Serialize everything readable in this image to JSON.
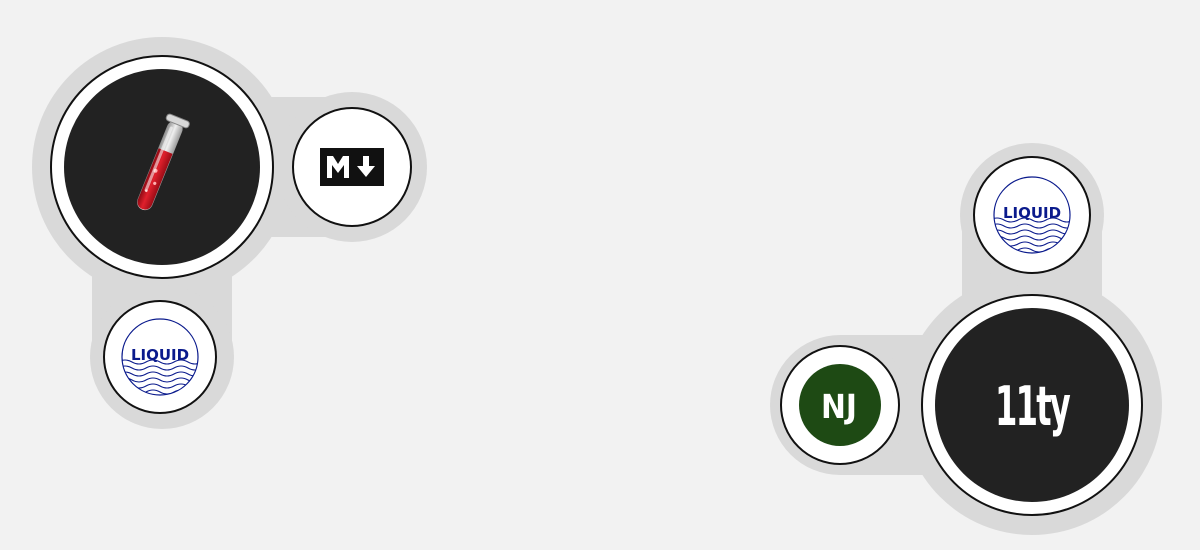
{
  "left_cluster": {
    "main": {
      "icon": "test-tube-icon"
    },
    "satellites": [
      {
        "icon": "markdown-icon"
      },
      {
        "icon": "liquid-icon",
        "label": "LIQUID"
      }
    ]
  },
  "right_cluster": {
    "main": {
      "icon": "eleventy-icon",
      "label": "11ty"
    },
    "satellites": [
      {
        "icon": "liquid-icon",
        "label": "LIQUID"
      },
      {
        "icon": "nunjucks-icon",
        "label": "NJ"
      }
    ]
  },
  "colors": {
    "background": "#f2f2f2",
    "halo": "#d9d9d9",
    "dark_disc": "#222222",
    "nunjucks_green": "#1e4a14",
    "liquid_blue": "#0a1a8c",
    "tube_red": "#c8101e"
  }
}
